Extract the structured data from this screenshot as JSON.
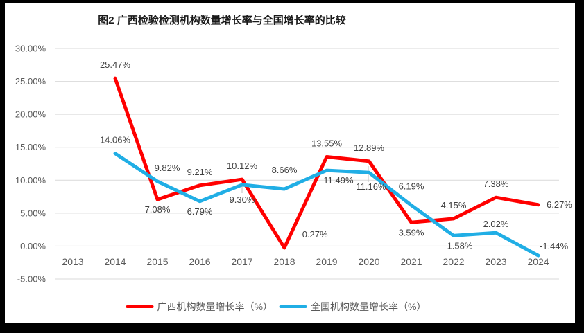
{
  "colors": {
    "frame": "#000000",
    "background": "#FFFFFF",
    "grid": "#D9D9D9",
    "axis_text": "#595959",
    "label_text": "#404040",
    "title_text": "#1A1A1A",
    "leader": "#BFBFBF",
    "series_red": "#FF0000",
    "series_blue": "#20AEE5"
  },
  "chart_data": {
    "type": "line",
    "title": "图2 广西检验检测机构数量增长率与全国增长率的比较",
    "categories": [
      2013,
      2014,
      2015,
      2016,
      2017,
      2018,
      2019,
      2020,
      2021,
      2022,
      2023,
      2024
    ],
    "xlabel": "",
    "ylabel": "",
    "y_axis": {
      "min": -5,
      "max": 30,
      "step": 5,
      "tick_labels": [
        "30.00%",
        "25.00%",
        "20.00%",
        "15.00%",
        "10.00%",
        "5.00%",
        "0.00%",
        "-5.00%"
      ]
    },
    "grid": true,
    "legend_position": "bottom",
    "series": [
      {
        "id": "guangxi",
        "name": "广西机构数量增长率（%）",
        "color": "#FF0000",
        "points": [
          {
            "year": 2014,
            "value": 25.47,
            "label": "25.47%",
            "pos": "above"
          },
          {
            "year": 2015,
            "value": 7.08,
            "label": "7.08%",
            "pos": "below"
          },
          {
            "year": 2016,
            "value": 9.21,
            "label": "9.21%",
            "pos": "above"
          },
          {
            "year": 2017,
            "value": 10.12,
            "label": "10.12%",
            "pos": "above"
          },
          {
            "year": 2018,
            "value": -0.27,
            "label": "-0.27%",
            "pos": "above",
            "dx": 42
          },
          {
            "year": 2019,
            "value": 13.55,
            "label": "13.55%",
            "pos": "above"
          },
          {
            "year": 2020,
            "value": 12.89,
            "label": "12.89%",
            "pos": "above"
          },
          {
            "year": 2021,
            "value": 3.59,
            "label": "3.59%",
            "pos": "below"
          },
          {
            "year": 2022,
            "value": 4.15,
            "label": "4.15%",
            "pos": "above"
          },
          {
            "year": 2023,
            "value": 7.38,
            "label": "7.38%",
            "pos": "above"
          },
          {
            "year": 2024,
            "value": 6.27,
            "label": "6.27%",
            "pos": "right"
          }
        ]
      },
      {
        "id": "national",
        "name": "全国机构数量增长率（%）",
        "color": "#20AEE5",
        "points": [
          {
            "year": 2014,
            "value": 14.06,
            "label": "14.06%",
            "pos": "above"
          },
          {
            "year": 2015,
            "value": 9.82,
            "label": "9.82%",
            "pos": "above",
            "dx": 14
          },
          {
            "year": 2016,
            "value": 6.79,
            "label": "6.79%",
            "pos": "below"
          },
          {
            "year": 2017,
            "value": 9.3,
            "label": "9.30%",
            "pos": "below",
            "dy": 7
          },
          {
            "year": 2018,
            "value": 8.66,
            "label": "8.66%",
            "pos": "above",
            "dy": -8
          },
          {
            "year": 2019,
            "value": 11.49,
            "label": "11.49%",
            "pos": "below",
            "dx": 17
          },
          {
            "year": 2020,
            "value": 11.16,
            "label": "11.16%",
            "pos": "below",
            "dx": 3,
            "dy": 6
          },
          {
            "year": 2021,
            "value": 6.19,
            "label": "6.19%",
            "pos": "above",
            "dy": -8
          },
          {
            "year": 2022,
            "value": 1.58,
            "label": "1.58%",
            "pos": "below",
            "dx": 9
          },
          {
            "year": 2023,
            "value": 2.02,
            "label": "2.02%",
            "pos": "above",
            "dy": 7
          },
          {
            "year": 2024,
            "value": -1.44,
            "label": "-1.44%",
            "pos": "right",
            "dx": -10,
            "dy": -13
          }
        ]
      }
    ],
    "label_leaders": [
      {
        "x": 349,
        "y1": 263,
        "y2": 279
      },
      {
        "x": 531,
        "y1": 240,
        "y2": 263
      }
    ]
  }
}
